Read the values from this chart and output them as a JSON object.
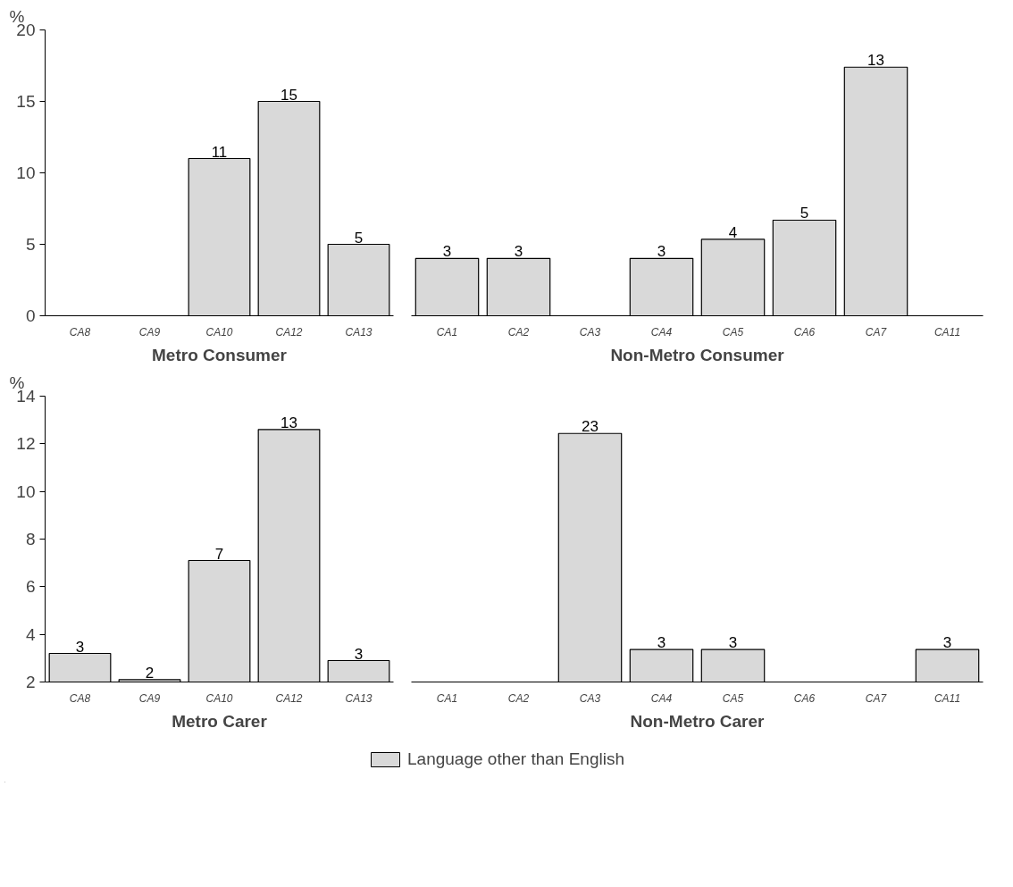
{
  "chart_data": [
    {
      "type": "bar",
      "xlabel": "Metro Consumer",
      "ylabel": "%",
      "categories": [
        "CA8",
        "CA9",
        "CA10",
        "CA12",
        "CA13"
      ],
      "series": [
        {
          "color": "#d9d9d9",
          "values": [
            null,
            null,
            11,
            15,
            5
          ]
        }
      ],
      "ylim": [
        0,
        20
      ],
      "yticks": [
        0,
        5,
        10,
        15,
        20
      ],
      "data_labels": true,
      "grid": false
    },
    {
      "type": "bar",
      "xlabel": "Non-Metro Consumer",
      "categories": [
        "CA1",
        "CA2",
        "CA3",
        "CA4",
        "CA5",
        "CA6",
        "CA7",
        "CA11"
      ],
      "series": [
        {
          "color": "#d9d9d9",
          "values": [
            3,
            3,
            null,
            3,
            4,
            5,
            13,
            null
          ]
        }
      ],
      "data_labels": true,
      "grid": false,
      "tick_labels": "x"
    },
    {
      "type": "bar",
      "xlabel": "Metro Carer",
      "ylabel": "%",
      "categories": [
        "CA8",
        "CA9",
        "CA10",
        "CA12",
        "CA13"
      ],
      "series": [
        {
          "color": "#d9d9d9",
          "values": [
            3.2,
            2.1,
            7.1,
            12.6,
            2.9
          ],
          "value_labels": [
            "3",
            "2",
            "7",
            "13",
            "3"
          ]
        }
      ],
      "ylim": [
        2,
        14
      ],
      "yticks": [
        2,
        4,
        6,
        8,
        10,
        12,
        14
      ],
      "grid": false
    },
    {
      "type": "bar",
      "xlabel": "Non-Metro Carer",
      "categories": [
        "CA1",
        "CA2",
        "CA3",
        "CA4",
        "CA5",
        "CA6",
        "CA7",
        "CA11"
      ],
      "series": [
        {
          "name": "Language other than English",
          "color": "#d9d9d9",
          "values": [
            null,
            null,
            23,
            3,
            3,
            null,
            null,
            3
          ]
        }
      ],
      "data_labels": true,
      "grid": false,
      "tick_labels": "x",
      "legend": "bottom"
    }
  ]
}
